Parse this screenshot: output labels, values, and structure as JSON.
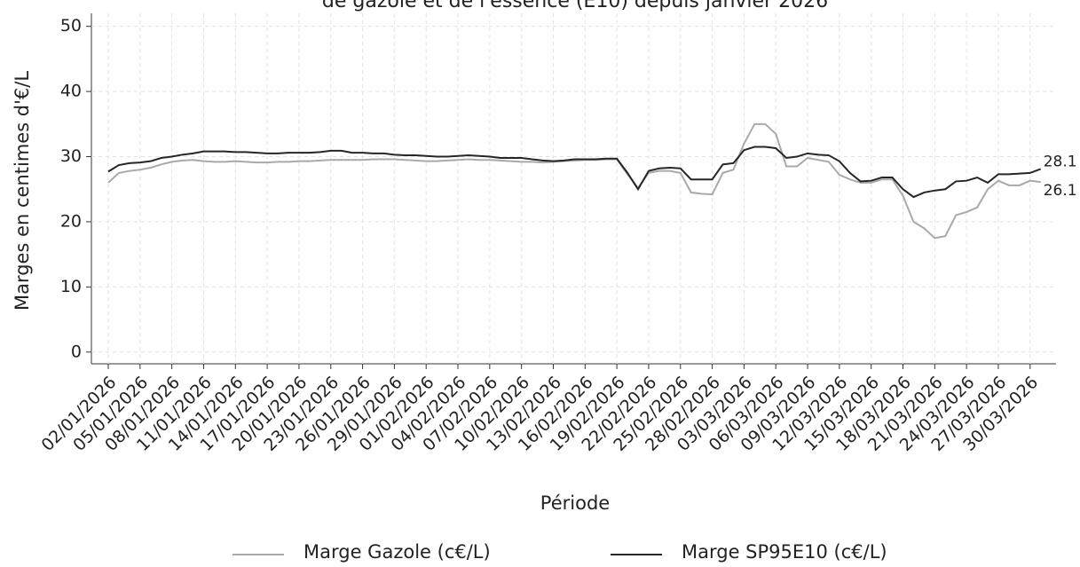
{
  "chart_data": {
    "type": "line",
    "title": "de gazole et de l'essence (E10) depuis janvier 2026",
    "xlabel": "Période",
    "ylabel": "Marges en centimes d'€/L",
    "categories": [
      "02/01/2026",
      null,
      null,
      "05/01/2026",
      null,
      null,
      "08/01/2026",
      null,
      null,
      "11/01/2026",
      null,
      null,
      "14/01/2026",
      null,
      null,
      "17/01/2026",
      null,
      null,
      "20/01/2026",
      null,
      null,
      "23/01/2026",
      null,
      null,
      "26/01/2026",
      null,
      null,
      "29/01/2026",
      null,
      null,
      "01/02/2026",
      null,
      null,
      "04/02/2026",
      null,
      null,
      "07/02/2026",
      null,
      null,
      "10/02/2026",
      null,
      null,
      "13/02/2026",
      null,
      null,
      "16/02/2026",
      null,
      null,
      "19/02/2026",
      null,
      null,
      "22/02/2026",
      null,
      null,
      "25/02/2026",
      null,
      null,
      "28/02/2026",
      null,
      null,
      "03/03/2026",
      null,
      null,
      "06/03/2026",
      null,
      null,
      "09/03/2026",
      null,
      null,
      "12/03/2026",
      null,
      null,
      "15/03/2026",
      null,
      null,
      "18/03/2026",
      null,
      null,
      "21/03/2026",
      null,
      null,
      "24/03/2026",
      null,
      null,
      "27/03/2026",
      null,
      null,
      "30/03/2026",
      null
    ],
    "series": [
      {
        "name": "Marge Gazole (c€/L)",
        "color": "#a9a9a9",
        "values": [
          26,
          27.5,
          27.8,
          28,
          28.3,
          28.8,
          29.2,
          29.4,
          29.5,
          29.3,
          29.2,
          29.2,
          29.3,
          29.2,
          29.1,
          29.1,
          29.2,
          29.2,
          29.3,
          29.3,
          29.4,
          29.5,
          29.5,
          29.5,
          29.5,
          29.6,
          29.6,
          29.6,
          29.5,
          29.4,
          29.3,
          29.3,
          29.4,
          29.5,
          29.6,
          29.5,
          29.5,
          29.4,
          29.3,
          29.2,
          29.2,
          29.1,
          29.2,
          29.3,
          29.4,
          29.5,
          29.5,
          29.6,
          29.6,
          27.3,
          25.2,
          27.5,
          27.8,
          27.8,
          27.5,
          24.5,
          24.3,
          24.2,
          27.5,
          28,
          32,
          35,
          35,
          33.5,
          28.5,
          28.5,
          29.8,
          29.5,
          29.2,
          27.2,
          26.5,
          26,
          26,
          26.5,
          26.5,
          24,
          20,
          19,
          17.5,
          17.8,
          21,
          21.5,
          22.2,
          25,
          26.3,
          25.6,
          25.6,
          26.3,
          26.1
        ]
      },
      {
        "name": "Marge SP95E10 (c€/L)",
        "color": "#262626",
        "values": [
          27.7,
          28.7,
          29,
          29.1,
          29.3,
          29.8,
          30,
          30.3,
          30.5,
          30.8,
          30.8,
          30.8,
          30.7,
          30.7,
          30.6,
          30.5,
          30.5,
          30.6,
          30.6,
          30.6,
          30.7,
          30.9,
          30.9,
          30.6,
          30.6,
          30.5,
          30.5,
          30.3,
          30.2,
          30.2,
          30.1,
          30,
          30,
          30.1,
          30.2,
          30.1,
          30,
          29.8,
          29.8,
          29.8,
          29.6,
          29.4,
          29.3,
          29.4,
          29.6,
          29.6,
          29.6,
          29.7,
          29.7,
          27.5,
          25,
          27.8,
          28.2,
          28.3,
          28.2,
          26.5,
          26.5,
          26.5,
          28.8,
          29,
          31,
          31.5,
          31.5,
          31.3,
          29.8,
          30,
          30.5,
          30.3,
          30.2,
          29.3,
          27.5,
          26.2,
          26.3,
          26.8,
          26.8,
          25,
          23.8,
          24.5,
          24.8,
          25,
          26.2,
          26.3,
          26.8,
          26,
          27.3,
          27.3,
          27.4,
          27.5,
          28.1
        ]
      }
    ],
    "ylim": [
      -1.8,
      52
    ],
    "yticks": [
      0,
      10,
      20,
      30,
      40,
      50
    ],
    "grid": true
  }
}
